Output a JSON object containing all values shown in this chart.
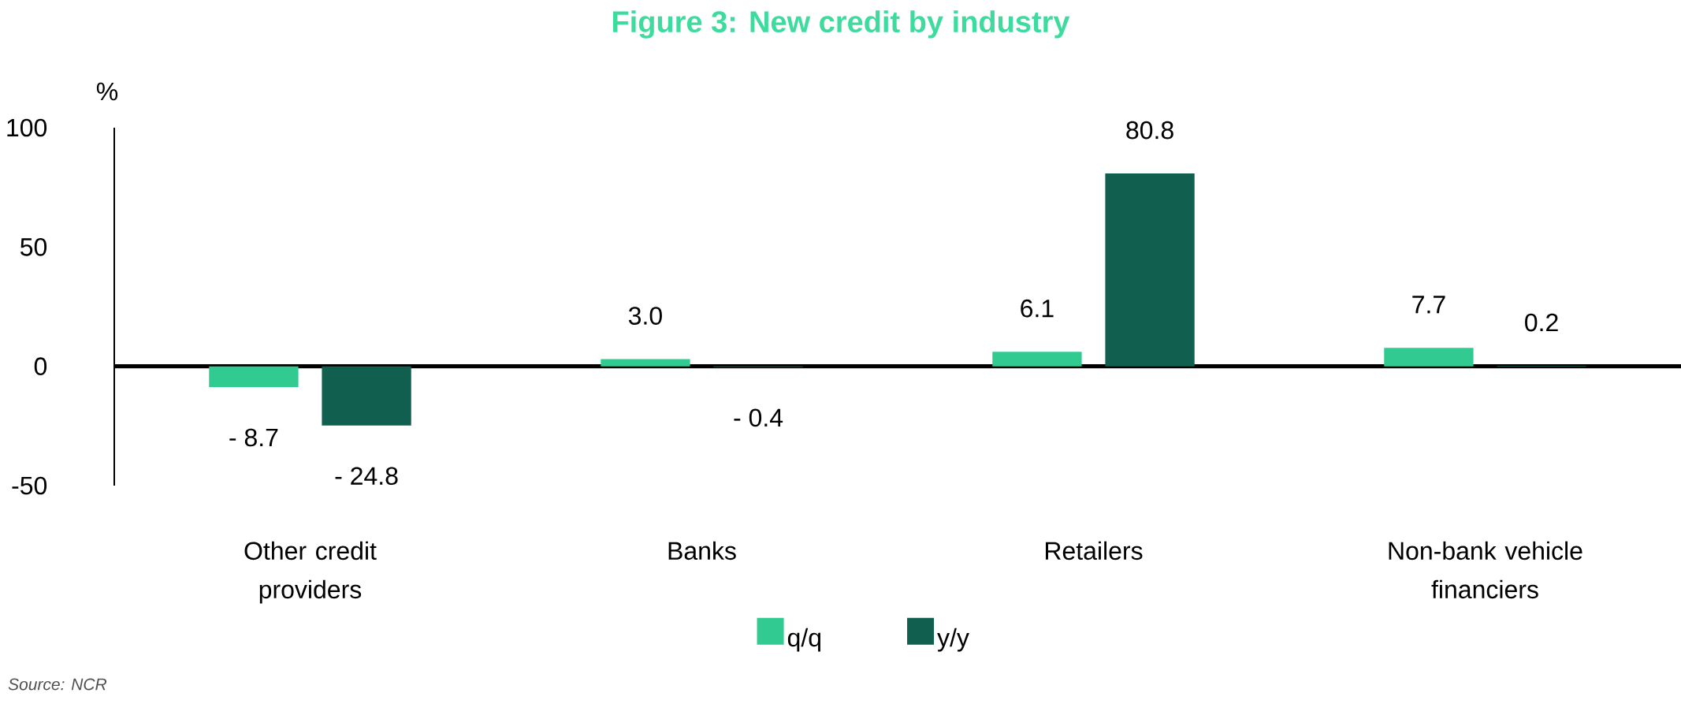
{
  "chart_data": {
    "type": "bar",
    "title": "Figure 3: New credit by industry",
    "ylabel": "%",
    "categories": [
      "Other credit providers",
      "Banks",
      "Retailers",
      "Non-bank vehicle financiers"
    ],
    "series": [
      {
        "name": "q/q",
        "color": "#31cb92",
        "values": [
          -8.7,
          3.0,
          6.1,
          7.7
        ],
        "value_labels": [
          "- 8.7",
          "3.0",
          "6.1",
          "7.7"
        ]
      },
      {
        "name": "y/y",
        "color": "#115f4f",
        "values": [
          -24.8,
          -0.4,
          80.8,
          0.2
        ],
        "value_labels": [
          "- 24.8",
          "- 0.4",
          "80.8",
          "0.2"
        ]
      }
    ],
    "ylim": [
      -50,
      100
    ],
    "yticks": [
      -50,
      0,
      50,
      100
    ],
    "legend": "bottom",
    "annotations": [
      "Source: NCR"
    ]
  }
}
